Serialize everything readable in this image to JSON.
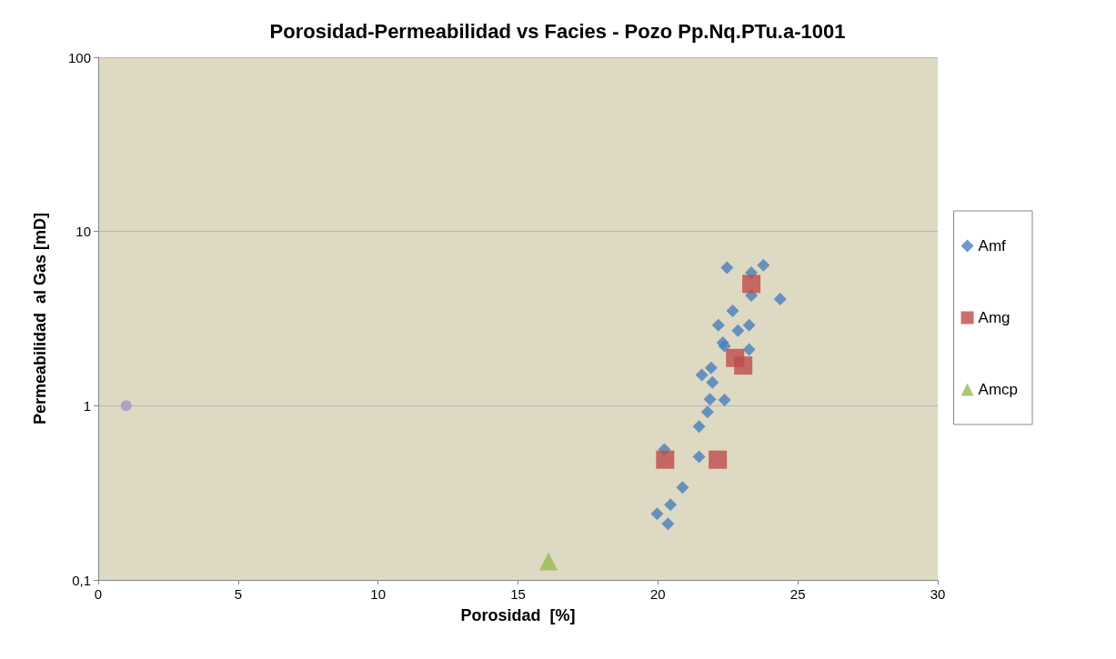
{
  "chart_data": {
    "type": "scatter",
    "title": "Porosidad-Permeabilidad vs Facies - Pozo Pp.Nq.PTu.a-1001",
    "xlabel": "Porosidad  [%]",
    "ylabel": "Permeabilidad  al Gas [mD]",
    "xlim": [
      0,
      30
    ],
    "xticks": [
      0,
      5,
      10,
      15,
      20,
      25,
      30
    ],
    "ylim": [
      0.1,
      100
    ],
    "yticks": [
      {
        "value": 0.1,
        "label": "0,1"
      },
      1,
      10,
      100
    ],
    "log": "y",
    "grid": "y",
    "legend": "right",
    "series": [
      {
        "name": "Amf",
        "color": "#4a7ebb",
        "marker": "diamond",
        "x": [
          22.47,
          23.77,
          23.34,
          23.34,
          24.37,
          22.67,
          22.16,
          22.86,
          23.26,
          22.32,
          22.38,
          23.26,
          21.9,
          21.57,
          21.95,
          21.86,
          22.38,
          21.77,
          21.47,
          20.23,
          21.47,
          20.88,
          20.45,
          19.97,
          20.36
        ],
        "values": [
          6.2,
          6.4,
          5.8,
          4.3,
          4.1,
          3.5,
          2.9,
          2.7,
          2.9,
          2.3,
          2.2,
          2.1,
          1.65,
          1.5,
          1.36,
          1.09,
          1.08,
          0.92,
          0.76,
          0.56,
          0.51,
          0.34,
          0.27,
          0.24,
          0.21
        ]
      },
      {
        "name": "Amg",
        "color": "#be4b48",
        "marker": "square",
        "x": [
          23.34,
          22.76,
          23.05,
          20.26,
          22.14
        ],
        "values": [
          5.0,
          1.88,
          1.7,
          0.49,
          0.49
        ]
      },
      {
        "name": "Amcp",
        "color": "#98b954",
        "marker": "triangle",
        "x": [
          16.09
        ],
        "values": [
          0.128
        ]
      },
      {
        "color": "#a991c8",
        "marker": "circle",
        "x": [
          1
        ],
        "values": [
          1
        ]
      }
    ]
  }
}
